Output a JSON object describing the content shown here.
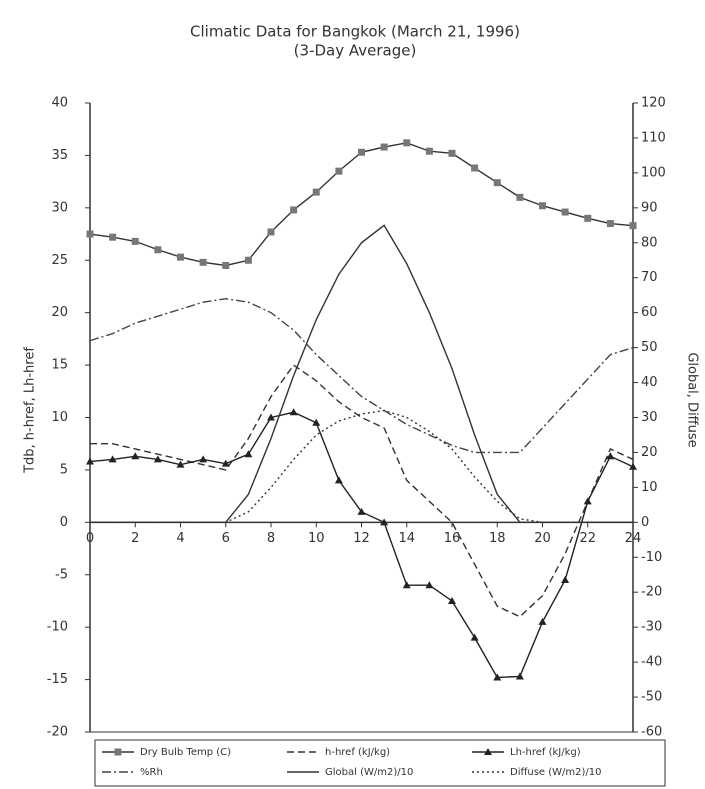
{
  "chart_data": {
    "type": "line",
    "title": "Climatic Data for Bangkok (March 21, 1996)",
    "subtitle": "(3-Day Average)",
    "y_label": "Tdb, h-href, Lh-href",
    "y2_label": "Global, Diffuse",
    "x": [
      0,
      1,
      2,
      3,
      4,
      5,
      6,
      7,
      8,
      9,
      10,
      11,
      12,
      13,
      14,
      15,
      16,
      17,
      18,
      19,
      20,
      21,
      22,
      23,
      24
    ],
    "xlim": [
      0,
      24
    ],
    "xticks": [
      0,
      2,
      4,
      6,
      8,
      10,
      12,
      14,
      16,
      18,
      20,
      22,
      24
    ],
    "ylim": [
      -20,
      40
    ],
    "yticks": [
      -20,
      -15,
      -10,
      -5,
      0,
      5,
      10,
      15,
      20,
      25,
      30,
      35,
      40
    ],
    "y2lim": [
      -60,
      120
    ],
    "y2ticks": [
      -60,
      -50,
      -40,
      -30,
      -20,
      -10,
      0,
      10,
      20,
      30,
      40,
      50,
      60,
      70,
      80,
      90,
      100,
      110,
      120
    ],
    "series": [
      {
        "name": "Dry Bulb Temp (C)",
        "color": "#333333",
        "style": "solid",
        "marker": "square",
        "values": [
          27.5,
          27.2,
          26.8,
          26,
          25.3,
          24.8,
          24.5,
          25,
          27.7,
          29.8,
          31.5,
          33.5,
          35.3,
          35.8,
          36.2,
          35.4,
          35.2,
          33.8,
          32.4,
          31,
          30.2,
          29.6,
          29,
          28.5,
          28.3
        ]
      },
      {
        "name": "h-href (kJ/kg)",
        "color": "#333333",
        "style": "dashed",
        "marker": "none",
        "values": [
          7.5,
          7.5,
          7,
          6.5,
          6,
          5.5,
          5,
          8,
          12,
          15,
          13.5,
          11.5,
          10,
          9,
          4,
          2,
          0,
          -4,
          -8,
          -9,
          -7,
          -3,
          2,
          7,
          6
        ]
      },
      {
        "name": "Lh-href (kJ/kg)",
        "color": "#222222",
        "style": "solid",
        "marker": "triangle",
        "values": [
          5.8,
          6,
          6.3,
          6,
          5.5,
          6,
          5.6,
          6.5,
          10,
          10.5,
          9.5,
          4,
          1,
          0,
          -6,
          -6,
          -7.5,
          -11,
          -14.8,
          -14.7,
          -9.5,
          -5.5,
          2,
          6.3,
          5.3
        ]
      },
      {
        "name": "%Rh",
        "color": "#444444",
        "style": "dashdot",
        "marker": "none",
        "axis": "y2",
        "values": [
          52,
          54,
          57,
          59,
          61,
          63,
          64,
          63,
          60,
          55,
          48,
          42,
          36,
          32,
          28,
          25,
          22,
          20,
          20,
          20,
          27,
          34,
          41,
          48,
          50
        ]
      },
      {
        "name": "Global (W/m2)/10",
        "color": "#333333",
        "style": "solid",
        "marker": "none",
        "axis": "y2",
        "values": [
          0,
          0,
          0,
          0,
          0,
          0,
          0,
          8,
          24,
          42,
          58,
          71,
          80,
          85,
          74,
          60,
          44,
          25,
          8,
          0,
          0,
          0,
          0,
          0,
          0
        ]
      },
      {
        "name": "Diffuse (W/m2)/10",
        "color": "#333333",
        "style": "dotted",
        "marker": "none",
        "axis": "y2",
        "values": [
          0,
          0,
          0,
          0,
          0,
          0,
          0,
          3,
          10,
          18,
          25,
          29,
          31,
          32,
          30,
          26,
          21,
          13,
          6,
          1,
          0,
          0,
          0,
          0,
          0
        ]
      }
    ]
  }
}
